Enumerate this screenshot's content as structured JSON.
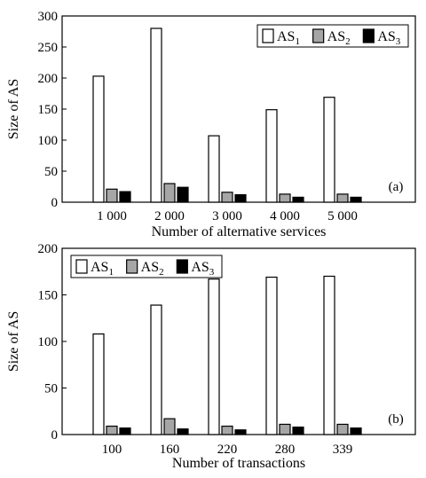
{
  "chart_data": [
    {
      "type": "bar",
      "panel_label": "(a)",
      "xlabel": "Number of alternative services",
      "ylabel": "Size of AS",
      "ylim": [
        0,
        300
      ],
      "yticks": [
        0,
        50,
        100,
        150,
        200,
        250,
        300
      ],
      "categories": [
        "1 000",
        "2 000",
        "3 000",
        "4 000",
        "5 000"
      ],
      "legend_position": "top-right",
      "series": [
        {
          "name": "AS",
          "sub": "1",
          "color": "#ffffff",
          "values": [
            203,
            280,
            107,
            149,
            169
          ]
        },
        {
          "name": "AS",
          "sub": "2",
          "color": "#a6a6a6",
          "values": [
            21,
            30,
            16,
            13,
            13
          ]
        },
        {
          "name": "AS",
          "sub": "3",
          "color": "#000000",
          "values": [
            17,
            24,
            12,
            8,
            8
          ]
        }
      ]
    },
    {
      "type": "bar",
      "panel_label": "(b)",
      "xlabel": "Number of transactions",
      "ylabel": "Size of AS",
      "ylim": [
        0,
        200
      ],
      "yticks": [
        0,
        50,
        100,
        150,
        200
      ],
      "categories": [
        "100",
        "160",
        "220",
        "280",
        "339"
      ],
      "legend_position": "top-left",
      "series": [
        {
          "name": "AS",
          "sub": "1",
          "color": "#ffffff",
          "values": [
            108,
            139,
            167,
            169,
            170
          ]
        },
        {
          "name": "AS",
          "sub": "2",
          "color": "#a6a6a6",
          "values": [
            9,
            17,
            9,
            11,
            11
          ]
        },
        {
          "name": "AS",
          "sub": "3",
          "color": "#000000",
          "values": [
            7,
            6,
            5,
            8,
            7
          ]
        }
      ]
    }
  ]
}
